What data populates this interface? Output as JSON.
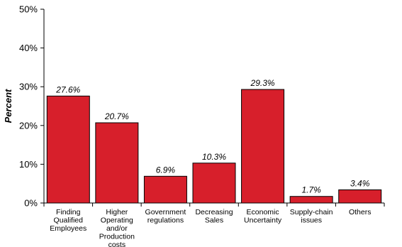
{
  "chart_data": {
    "type": "bar",
    "title": "",
    "xlabel": "",
    "ylabel": "Percent",
    "ylim": [
      0,
      50
    ],
    "y_ticks": [
      "0%",
      "10%",
      "20%",
      "30%",
      "40%",
      "50%"
    ],
    "y_tick_values": [
      0,
      10,
      20,
      30,
      40,
      50
    ],
    "categories": [
      "Finding Qualified Employees",
      "Higher Operating and/or Production costs",
      "Government regulations",
      "Decreasing Sales",
      "Economic Uncertainty",
      "Supply-chain issues",
      "Others"
    ],
    "category_lines": [
      [
        "Finding",
        "Qualified",
        "Employees"
      ],
      [
        "Higher",
        "Operating",
        "and/or",
        "Production",
        "costs"
      ],
      [
        "Government",
        "regulations"
      ],
      [
        "Decreasing",
        "Sales"
      ],
      [
        "Economic",
        "Uncertainty"
      ],
      [
        "Supply-chain",
        "issues"
      ],
      [
        "Others"
      ]
    ],
    "values": [
      27.6,
      20.7,
      6.9,
      10.3,
      29.3,
      1.7,
      3.4
    ],
    "data_labels": [
      "27.6%",
      "20.7%",
      "6.9%",
      "10.3%",
      "29.3%",
      "1.7%",
      "3.4%"
    ],
    "bar_color": "#d71f2b",
    "grid": false,
    "legend": "none"
  }
}
